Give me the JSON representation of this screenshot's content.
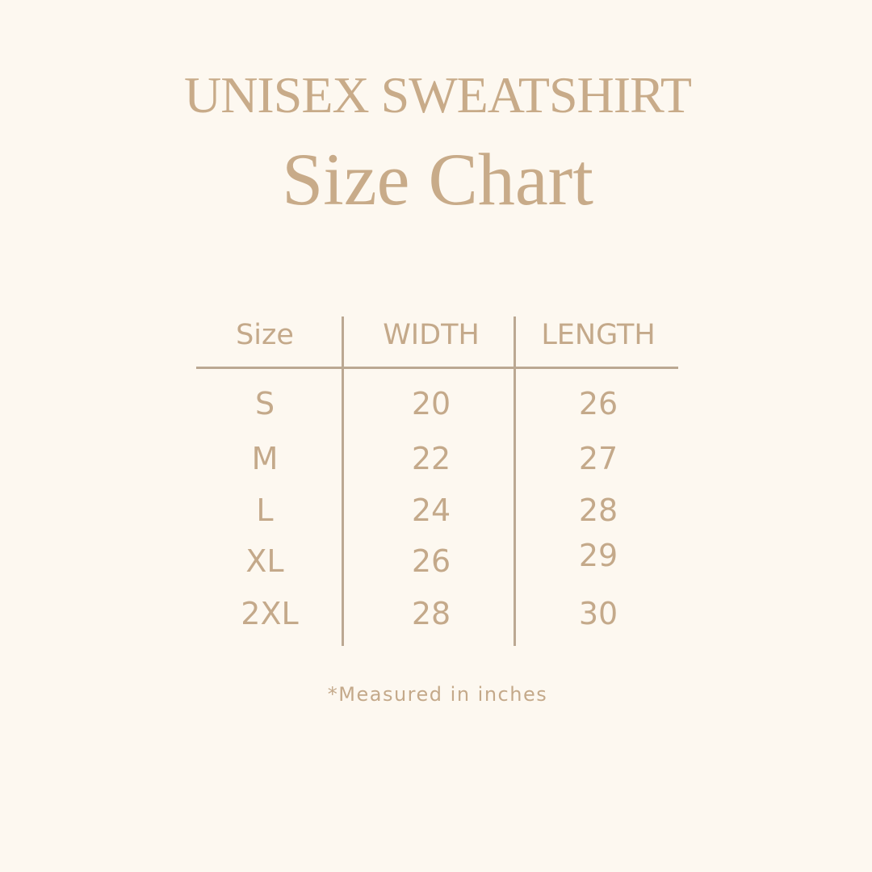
{
  "header": {
    "title": "UNISEX SWEATSHIRT",
    "subtitle": "Size Chart"
  },
  "table": {
    "columns": [
      "Size",
      "WIDTH",
      "LENGTH"
    ],
    "rows": [
      [
        "S",
        "20",
        "26"
      ],
      [
        "M",
        "22",
        "27"
      ],
      [
        "L",
        "24",
        "28"
      ],
      [
        "XL",
        "26",
        "29"
      ],
      [
        "2XL",
        "28",
        "30"
      ]
    ]
  },
  "footnote": "*Measured in inches",
  "colors": {
    "background": "#fdf8f0",
    "text": "#c4a98a",
    "lines": "#bba892"
  }
}
